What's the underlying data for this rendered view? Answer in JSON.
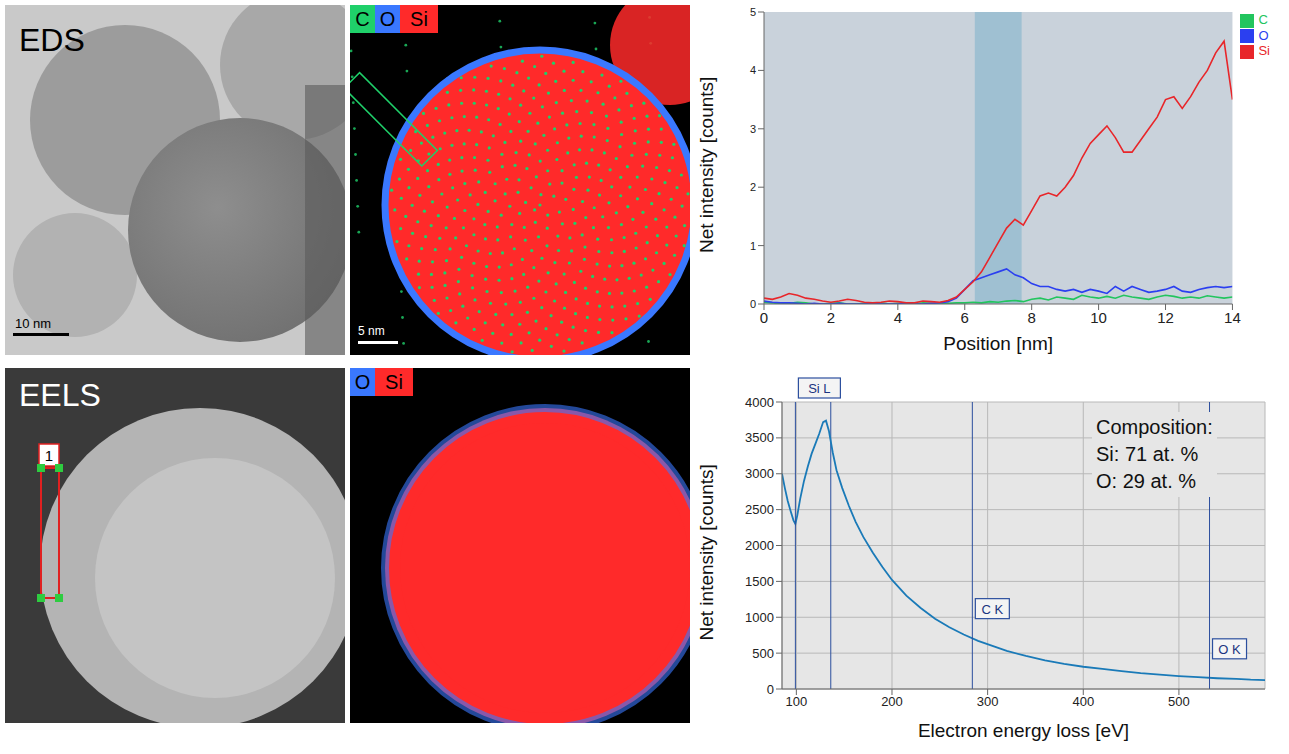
{
  "panels": [
    {
      "title": "EDS",
      "scale_bar": "10 nm"
    },
    {
      "legend": [
        {
          "name": "C",
          "color": "#1fd06a"
        },
        {
          "name": "O",
          "color": "#3a78ff"
        },
        {
          "name": "Si",
          "color": "#ff2a2a"
        }
      ],
      "scale_bar": "5 nm"
    },
    {
      "title": "EELS",
      "region_label": "1"
    },
    {
      "legend": [
        {
          "name": "O",
          "color": "#3a78ff"
        },
        {
          "name": "Si",
          "color": "#ff2a2a"
        }
      ]
    }
  ],
  "chart_data": [
    {
      "type": "line",
      "x_label": "Position [nm]",
      "y_label": "Net intensity [counts]",
      "x": [
        0,
        0.25,
        0.5,
        0.75,
        1,
        1.25,
        1.5,
        1.75,
        2,
        2.25,
        2.5,
        2.75,
        3,
        3.25,
        3.5,
        3.75,
        4,
        4.25,
        4.5,
        4.75,
        5,
        5.25,
        5.5,
        5.75,
        6,
        6.25,
        6.5,
        6.75,
        7,
        7.25,
        7.5,
        7.75,
        8,
        8.25,
        8.5,
        8.75,
        9,
        9.25,
        9.5,
        9.75,
        10,
        10.25,
        10.5,
        10.75,
        11,
        11.25,
        11.5,
        11.75,
        12,
        12.25,
        12.5,
        12.75,
        13,
        13.25,
        13.5,
        13.75,
        14
      ],
      "series": [
        {
          "name": "C",
          "color": "#22c55e",
          "values": [
            0.03,
            0.02,
            0,
            0.01,
            0.03,
            0.02,
            0,
            0,
            0.01,
            0.02,
            0,
            0,
            0.01,
            0,
            0.02,
            0,
            0.01,
            0,
            0,
            0.02,
            0.01,
            0,
            0.01,
            0.02,
            0.02,
            0.03,
            0.02,
            0.04,
            0.03,
            0.05,
            0.06,
            0.04,
            0.08,
            0.1,
            0.07,
            0.12,
            0.1,
            0.08,
            0.15,
            0.12,
            0.1,
            0.13,
            0.1,
            0.15,
            0.12,
            0.1,
            0.08,
            0.12,
            0.15,
            0.13,
            0.1,
            0.12,
            0.1,
            0.14,
            0.12,
            0.1,
            0.12
          ]
        },
        {
          "name": "O",
          "color": "#2b3ff0",
          "values": [
            0.05,
            0.03,
            0.02,
            0.02,
            0.01,
            0,
            0.01,
            0,
            0,
            0.01,
            0,
            0,
            0,
            0.01,
            0,
            0,
            0,
            0.01,
            0,
            0,
            0.01,
            0.02,
            0.04,
            0.1,
            0.25,
            0.4,
            0.45,
            0.5,
            0.55,
            0.6,
            0.5,
            0.45,
            0.35,
            0.3,
            0.3,
            0.25,
            0.22,
            0.25,
            0.2,
            0.25,
            0.22,
            0.18,
            0.3,
            0.22,
            0.3,
            0.25,
            0.2,
            0.22,
            0.25,
            0.3,
            0.22,
            0.2,
            0.25,
            0.28,
            0.3,
            0.28,
            0.3
          ]
        },
        {
          "name": "Si",
          "color": "#e8262a",
          "values": [
            0.1,
            0.08,
            0.12,
            0.18,
            0.15,
            0.1,
            0.08,
            0.05,
            0.03,
            0.05,
            0.08,
            0.06,
            0.03,
            0.02,
            0.03,
            0.05,
            0.04,
            0.02,
            0.02,
            0.05,
            0.04,
            0.03,
            0.06,
            0.12,
            0.25,
            0.38,
            0.55,
            0.8,
            1.05,
            1.3,
            1.45,
            1.35,
            1.6,
            1.85,
            1.9,
            1.85,
            2.0,
            2.2,
            2.5,
            2.75,
            2.9,
            3.05,
            2.85,
            2.6,
            2.6,
            2.8,
            3.0,
            3.2,
            3.5,
            3.55,
            3.35,
            3.55,
            3.8,
            4.0,
            4.3,
            4.5,
            3.5
          ]
        }
      ],
      "xlim": [
        0,
        14
      ],
      "xticks": [
        0,
        2,
        4,
        6,
        8,
        10,
        12,
        14
      ],
      "ylim": [
        0,
        5
      ],
      "yticks": [
        0,
        1,
        2,
        3,
        4,
        5
      ],
      "grid": false,
      "legend": "right",
      "highlight_range": [
        6.3,
        7.7
      ]
    },
    {
      "type": "line",
      "x_label": "Electron energy loss [eV]",
      "y_label": "Net intensity [counts]",
      "x": [
        85,
        88,
        91,
        94,
        97,
        99,
        101,
        104,
        108,
        112,
        116,
        120,
        124,
        128,
        131,
        134,
        138,
        142,
        148,
        155,
        162,
        170,
        180,
        190,
        200,
        215,
        230,
        245,
        260,
        275,
        290,
        305,
        320,
        340,
        360,
        380,
        400,
        420,
        440,
        460,
        480,
        500,
        520,
        540,
        560,
        575,
        590
      ],
      "values": [
        3000,
        2800,
        2620,
        2480,
        2350,
        2300,
        2420,
        2650,
        2900,
        3100,
        3280,
        3420,
        3560,
        3720,
        3740,
        3600,
        3300,
        3050,
        2800,
        2550,
        2330,
        2120,
        1900,
        1700,
        1520,
        1300,
        1130,
        980,
        860,
        760,
        670,
        600,
        530,
        460,
        400,
        350,
        310,
        280,
        250,
        220,
        200,
        180,
        165,
        150,
        140,
        130,
        125
      ],
      "color": "#1a7ab8",
      "xlim": [
        85,
        590
      ],
      "xticks": [
        100,
        200,
        300,
        400,
        500
      ],
      "ylim": [
        0,
        4000
      ],
      "yticks": [
        0,
        500,
        1000,
        1500,
        2000,
        2500,
        3000,
        3500,
        4000
      ],
      "grid": true,
      "edges": [
        {
          "label": "Si L",
          "energy": 99,
          "end": 136
        },
        {
          "label": "C K",
          "energy": 284
        },
        {
          "label": "O K",
          "energy": 532
        }
      ],
      "annotation": [
        "Composition:",
        "Si: 71 at. %",
        "O: 29 at. %"
      ]
    }
  ]
}
